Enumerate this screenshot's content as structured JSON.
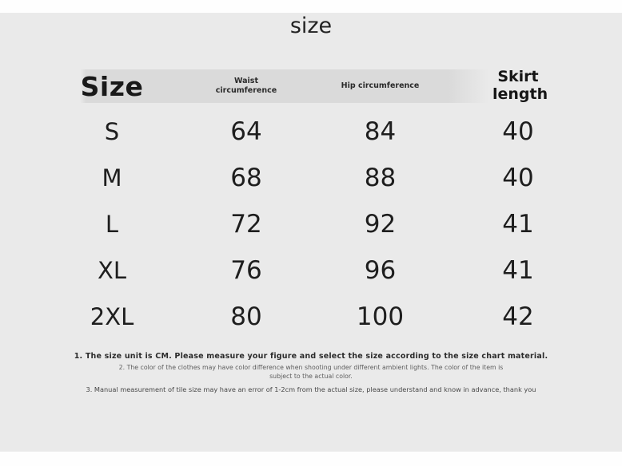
{
  "page": {
    "title": "size"
  },
  "colors": {
    "background": "#eaeaea",
    "top_bottom_strips": "#fefefe",
    "header_band": "#dadada",
    "text": "#1c1c1c",
    "note_muted": "#5d5d5d"
  },
  "chart_data": {
    "type": "table",
    "title": "size",
    "unit": "CM",
    "columns": [
      "Size",
      "Waist circumference",
      "Hip circumference",
      "Skirt length"
    ],
    "rows": [
      [
        "S",
        64,
        84,
        40
      ],
      [
        "M",
        68,
        88,
        40
      ],
      [
        "L",
        72,
        92,
        41
      ],
      [
        "XL",
        76,
        96,
        41
      ],
      [
        "2XL",
        80,
        100,
        42
      ]
    ]
  },
  "notes": {
    "note1": "1. The size unit is CM. Please measure your figure and select the size according to the size chart material.",
    "note2": "2. The color of the clothes may have color difference when shooting under different ambient lights. The color of the item is subject to the actual color.",
    "note3": "3. Manual measurement of tile size may have an error of 1-2cm from the actual size, please understand and know in advance, thank you"
  }
}
